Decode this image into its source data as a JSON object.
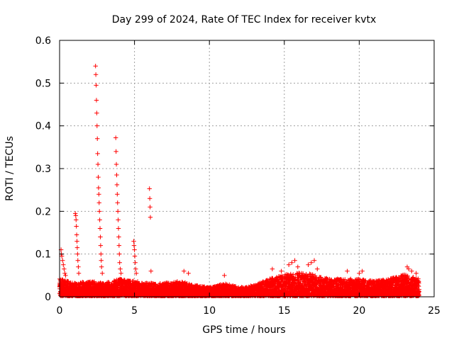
{
  "chart_data": {
    "type": "scatter",
    "title": "Day 299 of 2024, Rate Of TEC Index for receiver kvtx",
    "xlabel": "GPS time / hours",
    "ylabel": "ROTI / TECUs",
    "xlim": [
      0,
      25
    ],
    "ylim": [
      0,
      0.6
    ],
    "xticks": [
      0,
      5,
      10,
      15,
      20,
      25
    ],
    "yticks": [
      0,
      0.1,
      0.2,
      0.3,
      0.4,
      0.5,
      0.6
    ],
    "grid": true,
    "marker": "+",
    "series_color": "#ff0000",
    "background_noise": {
      "x_range": [
        0,
        24
      ],
      "baseline_max": [
        [
          0,
          0.04
        ],
        [
          1,
          0.03
        ],
        [
          2,
          0.035
        ],
        [
          3,
          0.03
        ],
        [
          4,
          0.04
        ],
        [
          5,
          0.035
        ],
        [
          6,
          0.03
        ],
        [
          7,
          0.03
        ],
        [
          8,
          0.035
        ],
        [
          9,
          0.025
        ],
        [
          10,
          0.02
        ],
        [
          11,
          0.03
        ],
        [
          12,
          0.02
        ],
        [
          13,
          0.025
        ],
        [
          14,
          0.04
        ],
        [
          15,
          0.05
        ],
        [
          16,
          0.055
        ],
        [
          17,
          0.05
        ],
        [
          18,
          0.04
        ],
        [
          19,
          0.04
        ],
        [
          20,
          0.04
        ],
        [
          21,
          0.035
        ],
        [
          22,
          0.04
        ],
        [
          23,
          0.05
        ],
        [
          24,
          0.04
        ]
      ]
    },
    "points": [
      [
        0.1,
        0.11
      ],
      [
        0.12,
        0.1
      ],
      [
        0.15,
        0.095
      ],
      [
        0.2,
        0.085
      ],
      [
        0.25,
        0.075
      ],
      [
        0.3,
        0.065
      ],
      [
        0.35,
        0.055
      ],
      [
        0.4,
        0.05
      ],
      [
        1.05,
        0.195
      ],
      [
        1.08,
        0.19
      ],
      [
        1.1,
        0.18
      ],
      [
        1.12,
        0.165
      ],
      [
        1.14,
        0.145
      ],
      [
        1.16,
        0.13
      ],
      [
        1.18,
        0.115
      ],
      [
        1.2,
        0.1
      ],
      [
        1.22,
        0.085
      ],
      [
        1.25,
        0.07
      ],
      [
        1.28,
        0.055
      ],
      [
        2.4,
        0.54
      ],
      [
        2.42,
        0.52
      ],
      [
        2.44,
        0.495
      ],
      [
        2.46,
        0.46
      ],
      [
        2.48,
        0.43
      ],
      [
        2.5,
        0.4
      ],
      [
        2.52,
        0.37
      ],
      [
        2.54,
        0.335
      ],
      [
        2.56,
        0.31
      ],
      [
        2.58,
        0.28
      ],
      [
        2.6,
        0.255
      ],
      [
        2.62,
        0.24
      ],
      [
        2.64,
        0.22
      ],
      [
        2.66,
        0.2
      ],
      [
        2.68,
        0.18
      ],
      [
        2.7,
        0.16
      ],
      [
        2.72,
        0.14
      ],
      [
        2.74,
        0.12
      ],
      [
        2.76,
        0.1
      ],
      [
        2.78,
        0.085
      ],
      [
        2.8,
        0.07
      ],
      [
        2.85,
        0.055
      ],
      [
        3.75,
        0.372
      ],
      [
        3.77,
        0.34
      ],
      [
        3.79,
        0.31
      ],
      [
        3.81,
        0.285
      ],
      [
        3.83,
        0.262
      ],
      [
        3.85,
        0.24
      ],
      [
        3.87,
        0.22
      ],
      [
        3.89,
        0.2
      ],
      [
        3.91,
        0.18
      ],
      [
        3.93,
        0.16
      ],
      [
        3.95,
        0.14
      ],
      [
        3.97,
        0.12
      ],
      [
        3.99,
        0.1
      ],
      [
        4.01,
        0.08
      ],
      [
        4.05,
        0.065
      ],
      [
        4.1,
        0.055
      ],
      [
        4.95,
        0.13
      ],
      [
        4.97,
        0.12
      ],
      [
        5.0,
        0.11
      ],
      [
        5.02,
        0.095
      ],
      [
        5.05,
        0.08
      ],
      [
        5.08,
        0.065
      ],
      [
        5.12,
        0.055
      ],
      [
        6.0,
        0.253
      ],
      [
        6.02,
        0.23
      ],
      [
        6.04,
        0.21
      ],
      [
        6.06,
        0.186
      ],
      [
        6.1,
        0.06
      ],
      [
        8.3,
        0.06
      ],
      [
        8.6,
        0.055
      ],
      [
        11.0,
        0.05
      ],
      [
        14.2,
        0.065
      ],
      [
        14.8,
        0.06
      ],
      [
        15.3,
        0.075
      ],
      [
        15.5,
        0.08
      ],
      [
        15.7,
        0.085
      ],
      [
        15.9,
        0.07
      ],
      [
        16.6,
        0.075
      ],
      [
        16.8,
        0.08
      ],
      [
        17.0,
        0.085
      ],
      [
        17.2,
        0.065
      ],
      [
        19.2,
        0.06
      ],
      [
        20.0,
        0.055
      ],
      [
        20.2,
        0.06
      ],
      [
        23.2,
        0.07
      ],
      [
        23.3,
        0.065
      ],
      [
        23.5,
        0.06
      ],
      [
        23.8,
        0.055
      ]
    ]
  }
}
